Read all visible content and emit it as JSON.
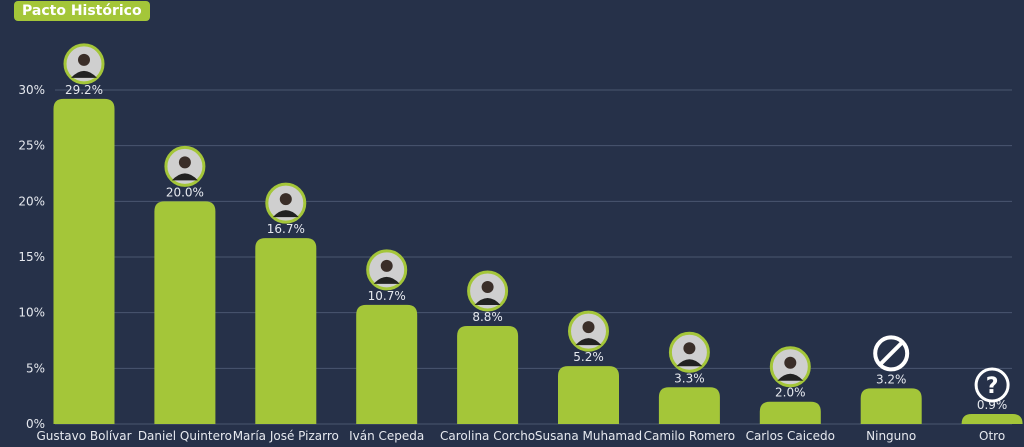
{
  "header": {
    "title": "Pacto Histórico"
  },
  "colors": {
    "background": "#263149",
    "bar": "#a4c639",
    "grid": "#4a5670",
    "text": "#e6e9ef"
  },
  "chart_data": {
    "type": "bar",
    "categories": [
      "Gustavo Bolívar",
      "Daniel Quintero",
      "María José Pizarro",
      "Iván Cepeda",
      "Carolina Corcho",
      "Susana Muhamad",
      "Camilo Romero",
      "Carlos Caicedo",
      "Ninguno",
      "Otro"
    ],
    "values": [
      29.2,
      20.0,
      16.7,
      10.7,
      8.8,
      5.2,
      3.3,
      2.0,
      3.2,
      0.9
    ],
    "data_labels": [
      "29.2%",
      "20.0%",
      "16.7%",
      "10.7%",
      "8.8%",
      "5.2%",
      "3.3%",
      "2.0%",
      "3.2%",
      "0.9%"
    ],
    "icons": [
      "photo",
      "photo",
      "photo",
      "photo",
      "photo",
      "photo",
      "photo",
      "photo",
      "no-symbol-icon",
      "question-icon"
    ],
    "yticks": [
      0,
      5,
      10,
      15,
      20,
      25,
      30
    ],
    "ytick_labels": [
      "0%",
      "5%",
      "10%",
      "15%",
      "20%",
      "25%",
      "30%"
    ],
    "ylim": [
      0,
      30
    ],
    "grid": true,
    "xlabel": "",
    "ylabel": ""
  }
}
